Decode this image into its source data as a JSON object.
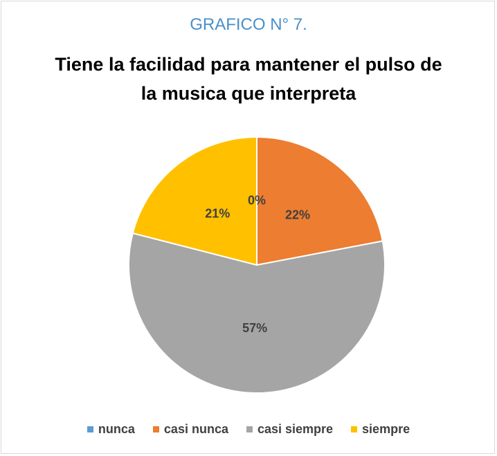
{
  "chart_data": {
    "type": "pie",
    "title": "GRAFICO N° 7.",
    "subtitle": "Tiene la facilidad para mantener el pulso de la musica que interpreta",
    "categories": [
      "nunca",
      "casi nunca",
      "casi siempre",
      "siempre"
    ],
    "values": [
      0,
      22,
      57,
      21
    ],
    "value_labels": [
      "0%",
      "22%",
      "57%",
      "21%"
    ],
    "colors": [
      "#5b9bd5",
      "#ed7d31",
      "#a5a5a5",
      "#ffc000"
    ],
    "legend": "bottom"
  }
}
